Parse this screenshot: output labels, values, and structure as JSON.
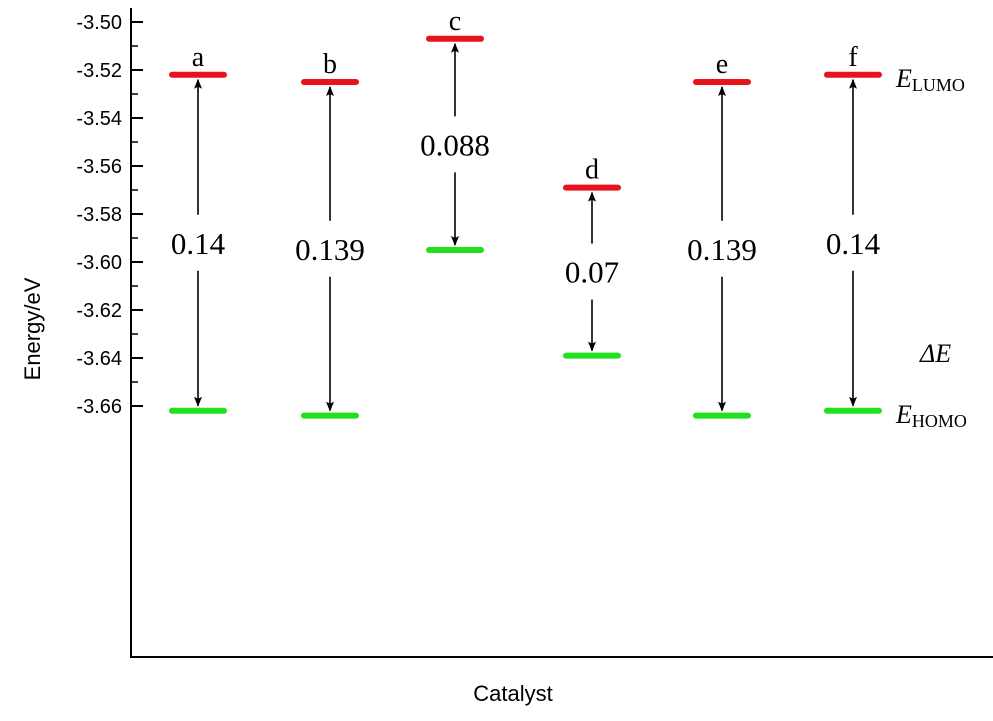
{
  "chart_data": {
    "type": "energy-level",
    "xlabel": "Catalyst",
    "ylabel": "Energy/eV",
    "ylim": [
      -3.67,
      -3.5
    ],
    "yticks": [
      -3.5,
      -3.52,
      -3.54,
      -3.56,
      -3.58,
      -3.6,
      -3.62,
      -3.64,
      -3.66
    ],
    "ytick_labels": [
      "-3.50",
      "-3.52",
      "-3.54",
      "-3.56",
      "-3.58",
      "-3.60",
      "-3.62",
      "-3.64",
      "-3.66"
    ],
    "catalysts": [
      {
        "label": "a",
        "lumo": -3.522,
        "homo": -3.662,
        "gap": "0.14"
      },
      {
        "label": "b",
        "lumo": -3.525,
        "homo": -3.664,
        "gap": "0.139"
      },
      {
        "label": "c",
        "lumo": -3.507,
        "homo": -3.595,
        "gap": "0.088"
      },
      {
        "label": "d",
        "lumo": -3.569,
        "homo": -3.639,
        "gap": "0.07"
      },
      {
        "label": "e",
        "lumo": -3.525,
        "homo": -3.664,
        "gap": "0.139"
      },
      {
        "label": "f",
        "lumo": -3.522,
        "homo": -3.662,
        "gap": "0.14"
      }
    ],
    "legend": {
      "lumo_main": "E",
      "lumo_sub": "LUMO",
      "homo_main": "E",
      "homo_sub": "HOMO",
      "gap": "ΔE"
    },
    "colors": {
      "lumo": "#e8141c",
      "homo": "#22e01e",
      "axis": "#000000"
    }
  }
}
